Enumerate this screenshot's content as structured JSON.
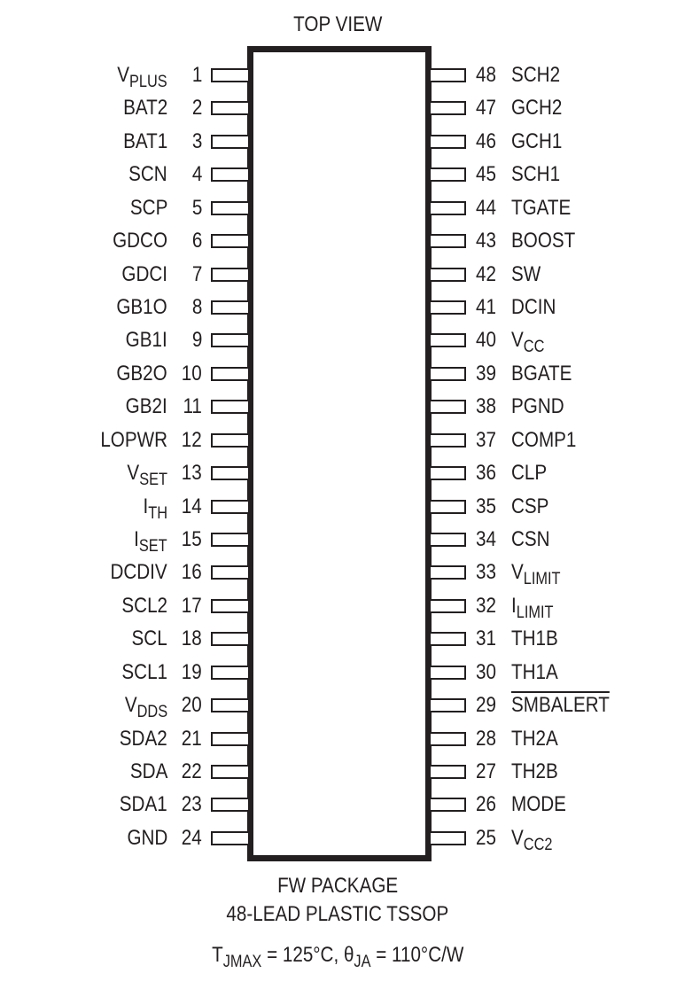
{
  "title": "TOP VIEW",
  "left_pins": [
    {
      "num": "1",
      "name": "V",
      "sub": "PLUS"
    },
    {
      "num": "2",
      "name": "BAT2"
    },
    {
      "num": "3",
      "name": "BAT1"
    },
    {
      "num": "4",
      "name": "SCN"
    },
    {
      "num": "5",
      "name": "SCP"
    },
    {
      "num": "6",
      "name": "GDCO"
    },
    {
      "num": "7",
      "name": "GDCI"
    },
    {
      "num": "8",
      "name": "GB1O"
    },
    {
      "num": "9",
      "name": "GB1I"
    },
    {
      "num": "10",
      "name": "GB2O"
    },
    {
      "num": "11",
      "name": "GB2I"
    },
    {
      "num": "12",
      "name": "LOPWR"
    },
    {
      "num": "13",
      "name": "V",
      "sub": "SET"
    },
    {
      "num": "14",
      "name": "I",
      "sub": "TH"
    },
    {
      "num": "15",
      "name": "I",
      "sub": "SET"
    },
    {
      "num": "16",
      "name": "DCDIV"
    },
    {
      "num": "17",
      "name": "SCL2"
    },
    {
      "num": "18",
      "name": "SCL"
    },
    {
      "num": "19",
      "name": "SCL1"
    },
    {
      "num": "20",
      "name": "V",
      "sub": "DDS"
    },
    {
      "num": "21",
      "name": "SDA2"
    },
    {
      "num": "22",
      "name": "SDA"
    },
    {
      "num": "23",
      "name": "SDA1"
    },
    {
      "num": "24",
      "name": "GND"
    }
  ],
  "right_pins": [
    {
      "num": "48",
      "name": "SCH2"
    },
    {
      "num": "47",
      "name": "GCH2"
    },
    {
      "num": "46",
      "name": "GCH1"
    },
    {
      "num": "45",
      "name": "SCH1"
    },
    {
      "num": "44",
      "name": "TGATE"
    },
    {
      "num": "43",
      "name": "BOOST"
    },
    {
      "num": "42",
      "name": "SW"
    },
    {
      "num": "41",
      "name": "DCIN"
    },
    {
      "num": "40",
      "name": "V",
      "sub": "CC"
    },
    {
      "num": "39",
      "name": "BGATE"
    },
    {
      "num": "38",
      "name": "PGND"
    },
    {
      "num": "37",
      "name": "COMP1"
    },
    {
      "num": "36",
      "name": "CLP"
    },
    {
      "num": "35",
      "name": "CSP"
    },
    {
      "num": "34",
      "name": "CSN"
    },
    {
      "num": "33",
      "name": "V",
      "sub": "LIMIT"
    },
    {
      "num": "32",
      "name": "I",
      "sub": "LIMIT"
    },
    {
      "num": "31",
      "name": "TH1B"
    },
    {
      "num": "30",
      "name": "TH1A"
    },
    {
      "num": "29",
      "name": "SMBALERT",
      "overbar": true
    },
    {
      "num": "28",
      "name": "TH2A"
    },
    {
      "num": "27",
      "name": "TH2B"
    },
    {
      "num": "26",
      "name": "MODE"
    },
    {
      "num": "25",
      "name": "V",
      "sub": "CC2"
    }
  ],
  "footer": {
    "line1": "FW PACKAGE",
    "line2": "48-LEAD PLASTIC TSSOP",
    "tj_symbol": "T",
    "tj_sub": "JMAX",
    "tj_value": " = 125°C, ",
    "theta_symbol": "θ",
    "theta_sub": "JA",
    "theta_value": " = 110°C/W"
  }
}
